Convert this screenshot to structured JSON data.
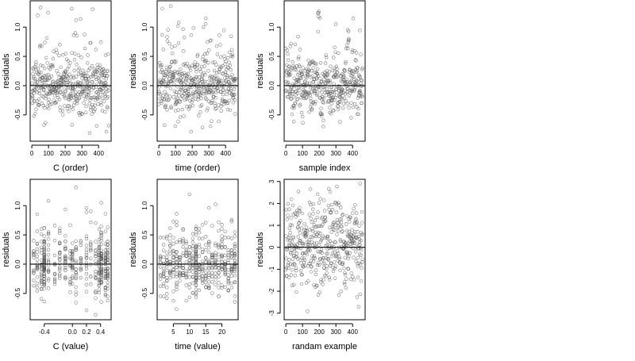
{
  "chart_data": [
    {
      "type": "scatter",
      "xlabel": "C (order)",
      "ylabel": "residuals",
      "xlim": [
        -10,
        475
      ],
      "ylim": [
        -0.95,
        1.45
      ],
      "xticks": [
        0,
        100,
        200,
        300,
        400
      ],
      "yticks": [
        -0.5,
        0.0,
        0.5,
        1.0
      ],
      "ytick_labels": [
        "-0.5",
        "0.0",
        "0.5",
        "1.0"
      ],
      "reference_line_y": 0,
      "pattern": "order",
      "x_range": [
        0,
        460
      ],
      "point_count": 460,
      "seed": 11
    },
    {
      "type": "scatter",
      "xlabel": "time (order)",
      "ylabel": "residuals",
      "xlim": [
        -10,
        475
      ],
      "ylim": [
        -0.95,
        1.45
      ],
      "xticks": [
        0,
        100,
        200,
        300,
        400
      ],
      "yticks": [
        -0.5,
        0.0,
        0.5,
        1.0
      ],
      "ytick_labels": [
        "-0.5",
        "0.0",
        "0.5",
        "1.0"
      ],
      "reference_line_y": 0,
      "pattern": "order",
      "x_range": [
        0,
        460
      ],
      "point_count": 460,
      "seed": 23
    },
    {
      "type": "scatter",
      "xlabel": "sample index",
      "ylabel": "residuals",
      "xlim": [
        -10,
        475
      ],
      "ylim": [
        -0.95,
        1.45
      ],
      "xticks": [
        0,
        100,
        200,
        300,
        400
      ],
      "yticks": [
        -0.5,
        0.0,
        0.5,
        1.0
      ],
      "ytick_labels": [
        "-0.5",
        "0.0",
        "0.5",
        "1.0"
      ],
      "reference_line_y": 0,
      "pattern": "index",
      "x_range": [
        0,
        460
      ],
      "point_count": 460,
      "seed": 37
    },
    {
      "type": "scatter",
      "xlabel": "C (value)",
      "ylabel": "residuals",
      "xlim": [
        -0.6,
        0.55
      ],
      "ylim": [
        -0.95,
        1.45
      ],
      "xticks": [
        -0.4,
        0.0,
        0.2,
        0.4
      ],
      "xtick_labels": [
        "-0.4",
        "0.0",
        "0.2",
        "0.4"
      ],
      "yticks": [
        -0.5,
        0.0,
        0.5,
        1.0
      ],
      "ytick_labels": [
        "-0.5",
        "0.0",
        "0.5",
        "1.0"
      ],
      "reference_line_y": 0,
      "pattern": "columns",
      "columns": [
        -0.55,
        -0.5,
        -0.44,
        -0.4,
        -0.34,
        -0.25,
        -0.18,
        -0.1,
        -0.03,
        0.0,
        0.05,
        0.12,
        0.2,
        0.26,
        0.33,
        0.38,
        0.41,
        0.47,
        0.5
      ],
      "column_weights": [
        2,
        3,
        4,
        10,
        3,
        2,
        3,
        4,
        2,
        3,
        3,
        2,
        3,
        2,
        3,
        5,
        8,
        5,
        6
      ],
      "point_count": 460,
      "seed": 41
    },
    {
      "type": "scatter",
      "xlabel": "time (value)",
      "ylabel": "residuals",
      "xlim": [
        0,
        25
      ],
      "ylim": [
        -0.95,
        1.45
      ],
      "xticks": [
        5,
        10,
        15,
        20
      ],
      "yticks": [
        -0.5,
        0.0,
        0.5,
        1.0
      ],
      "ytick_labels": [
        "-0.5",
        "0.0",
        "0.5",
        "1.0"
      ],
      "reference_line_y": 0,
      "pattern": "columns",
      "columns": [
        1,
        2,
        3,
        4,
        5,
        6,
        7,
        8,
        9,
        10,
        11,
        12,
        13,
        14,
        15,
        16,
        17,
        18,
        19,
        20,
        21,
        22,
        23,
        24
      ],
      "column_weights": [
        3,
        4,
        4,
        4,
        4,
        5,
        4,
        4,
        4,
        4,
        5,
        12,
        4,
        4,
        4,
        5,
        4,
        4,
        4,
        5,
        4,
        4,
        5,
        6
      ],
      "point_count": 460,
      "seed": 53
    },
    {
      "type": "scatter",
      "xlabel": "randam example",
      "ylabel": "residuals",
      "xlim": [
        -10,
        475
      ],
      "ylim": [
        -3.3,
        3.1
      ],
      "xticks": [
        0,
        100,
        200,
        300,
        400
      ],
      "yticks": [
        -3,
        -2,
        -1,
        0,
        1,
        2,
        3
      ],
      "ytick_labels": [
        "-3",
        "-2",
        "-1",
        "0",
        "1",
        "2",
        "3"
      ],
      "reference_line_y": 0,
      "pattern": "normal",
      "x_range": [
        0,
        460
      ],
      "point_count": 460,
      "seed": 67
    }
  ]
}
